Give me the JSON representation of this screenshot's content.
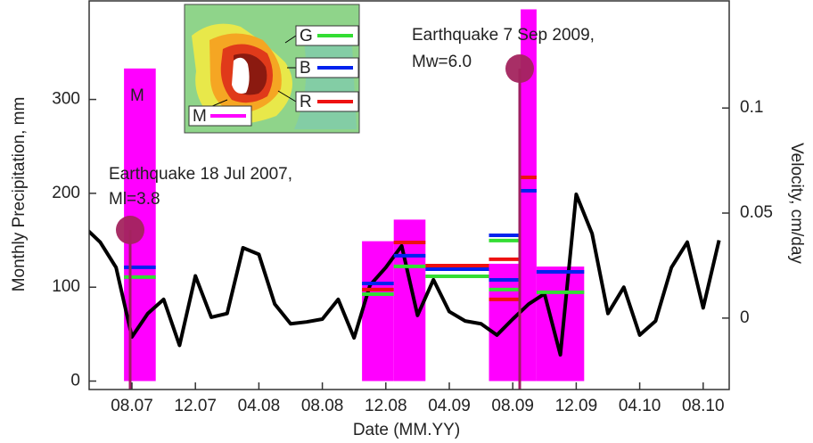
{
  "chart_data": {
    "type": "line",
    "x_label": "Date (MM.YY)",
    "y_label": "Monthly Precipitation, mm",
    "y2_label": "Velocity, cm/day",
    "x": [
      "05.07",
      "06.07",
      "07.07",
      "08.07",
      "09.07",
      "10.07",
      "11.07",
      "12.07",
      "01.08",
      "02.08",
      "03.08",
      "04.08",
      "05.08",
      "06.08",
      "07.08",
      "08.08",
      "09.08",
      "10.08",
      "11.08",
      "12.08",
      "01.09",
      "02.09",
      "03.09",
      "04.09",
      "05.09",
      "06.09",
      "07.09",
      "08.09",
      "09.09",
      "10.09",
      "11.09",
      "12.09",
      "01.10",
      "02.10",
      "03.10",
      "04.10",
      "05.10",
      "06.10",
      "07.10",
      "08.10",
      "09.10"
    ],
    "xticks": [
      "08.07",
      "12.07",
      "04.08",
      "08.08",
      "12.08",
      "04.09",
      "08.09",
      "12.09",
      "04.10",
      "08.10"
    ],
    "ylim": [
      -9,
      405
    ],
    "yticks": [
      0,
      100,
      200,
      300
    ],
    "y2lim": [
      -0.034,
      0.151
    ],
    "y2ticks": [
      0,
      0.05,
      0.1
    ],
    "series": [
      {
        "color": "#000000",
        "values": [
          164,
          148,
          121,
          47,
          72,
          87,
          38,
          112,
          68,
          72,
          142,
          135,
          82,
          61,
          63,
          66,
          87,
          46,
          102,
          121,
          144,
          70,
          108,
          74,
          64,
          61,
          49,
          66,
          82,
          93,
          28,
          199,
          157,
          72,
          100,
          49,
          64,
          121,
          148,
          78,
          150
        ]
      }
    ],
    "bars": {
      "name": "M",
      "color": "#ff00ff",
      "spans": [
        {
          "from": "08.07",
          "to": "09.07",
          "value": 333
        },
        {
          "from": "11.08",
          "to": "12.08",
          "value": 149
        },
        {
          "from": "01.09",
          "to": "02.09",
          "value": 172
        },
        {
          "from": "07.09",
          "to": "08.09",
          "value": 125
        },
        {
          "from": "09.09",
          "to": "09.09",
          "value": 396
        },
        {
          "from": "10.09",
          "to": "12.09",
          "value": 122
        }
      ]
    },
    "segments": [
      {
        "name": "G",
        "color": "#33dd33",
        "axis": "y2",
        "spans": [
          {
            "from": "08.07",
            "to": "09.07",
            "value": 0.0195
          },
          {
            "from": "11.08",
            "to": "12.08",
            "value": 0.0114
          },
          {
            "from": "01.09",
            "to": "02.09",
            "value": 0.0246
          },
          {
            "from": "03.09",
            "to": "06.09",
            "value": 0.0199
          },
          {
            "from": "07.09",
            "to": "08.09",
            "value": 0.0369
          },
          {
            "from": "07.09",
            "to": "08.09",
            "value": 0.0136
          },
          {
            "from": "10.09",
            "to": "12.09",
            "value": 0.0123
          }
        ]
      },
      {
        "name": "B",
        "color": "#0022ee",
        "axis": "y2",
        "spans": [
          {
            "from": "08.07",
            "to": "09.07",
            "value": 0.0242
          },
          {
            "from": "11.08",
            "to": "12.08",
            "value": 0.0165
          },
          {
            "from": "01.09",
            "to": "02.09",
            "value": 0.0297
          },
          {
            "from": "03.09",
            "to": "06.09",
            "value": 0.0233
          },
          {
            "from": "07.09",
            "to": "08.09",
            "value": 0.0394
          },
          {
            "from": "07.09",
            "to": "08.09",
            "value": 0.0182
          },
          {
            "from": "09.09",
            "to": "09.09",
            "value": 0.0606
          },
          {
            "from": "10.09",
            "to": "12.09",
            "value": 0.022
          }
        ]
      },
      {
        "name": "R",
        "color": "#ee1111",
        "axis": "y2",
        "spans": [
          {
            "from": "11.08",
            "to": "12.08",
            "value": 0.0136
          },
          {
            "from": "01.09",
            "to": "02.09",
            "value": 0.036
          },
          {
            "from": "03.09",
            "to": "06.09",
            "value": 0.025
          },
          {
            "from": "07.09",
            "to": "08.09",
            "value": 0.028
          },
          {
            "from": "07.09",
            "to": "08.09",
            "value": 0.0089
          },
          {
            "from": "09.09",
            "to": "09.09",
            "value": 0.067
          }
        ]
      }
    ],
    "annotations": [
      {
        "lines": [
          "Earthquake 18 Jul 2007,",
          "Ml=3.8"
        ]
      },
      {
        "lines": [
          "Earthquake 7 Sep 2009,",
          "Mw=6.0"
        ]
      },
      {
        "lines": [
          "M"
        ]
      }
    ]
  }
}
